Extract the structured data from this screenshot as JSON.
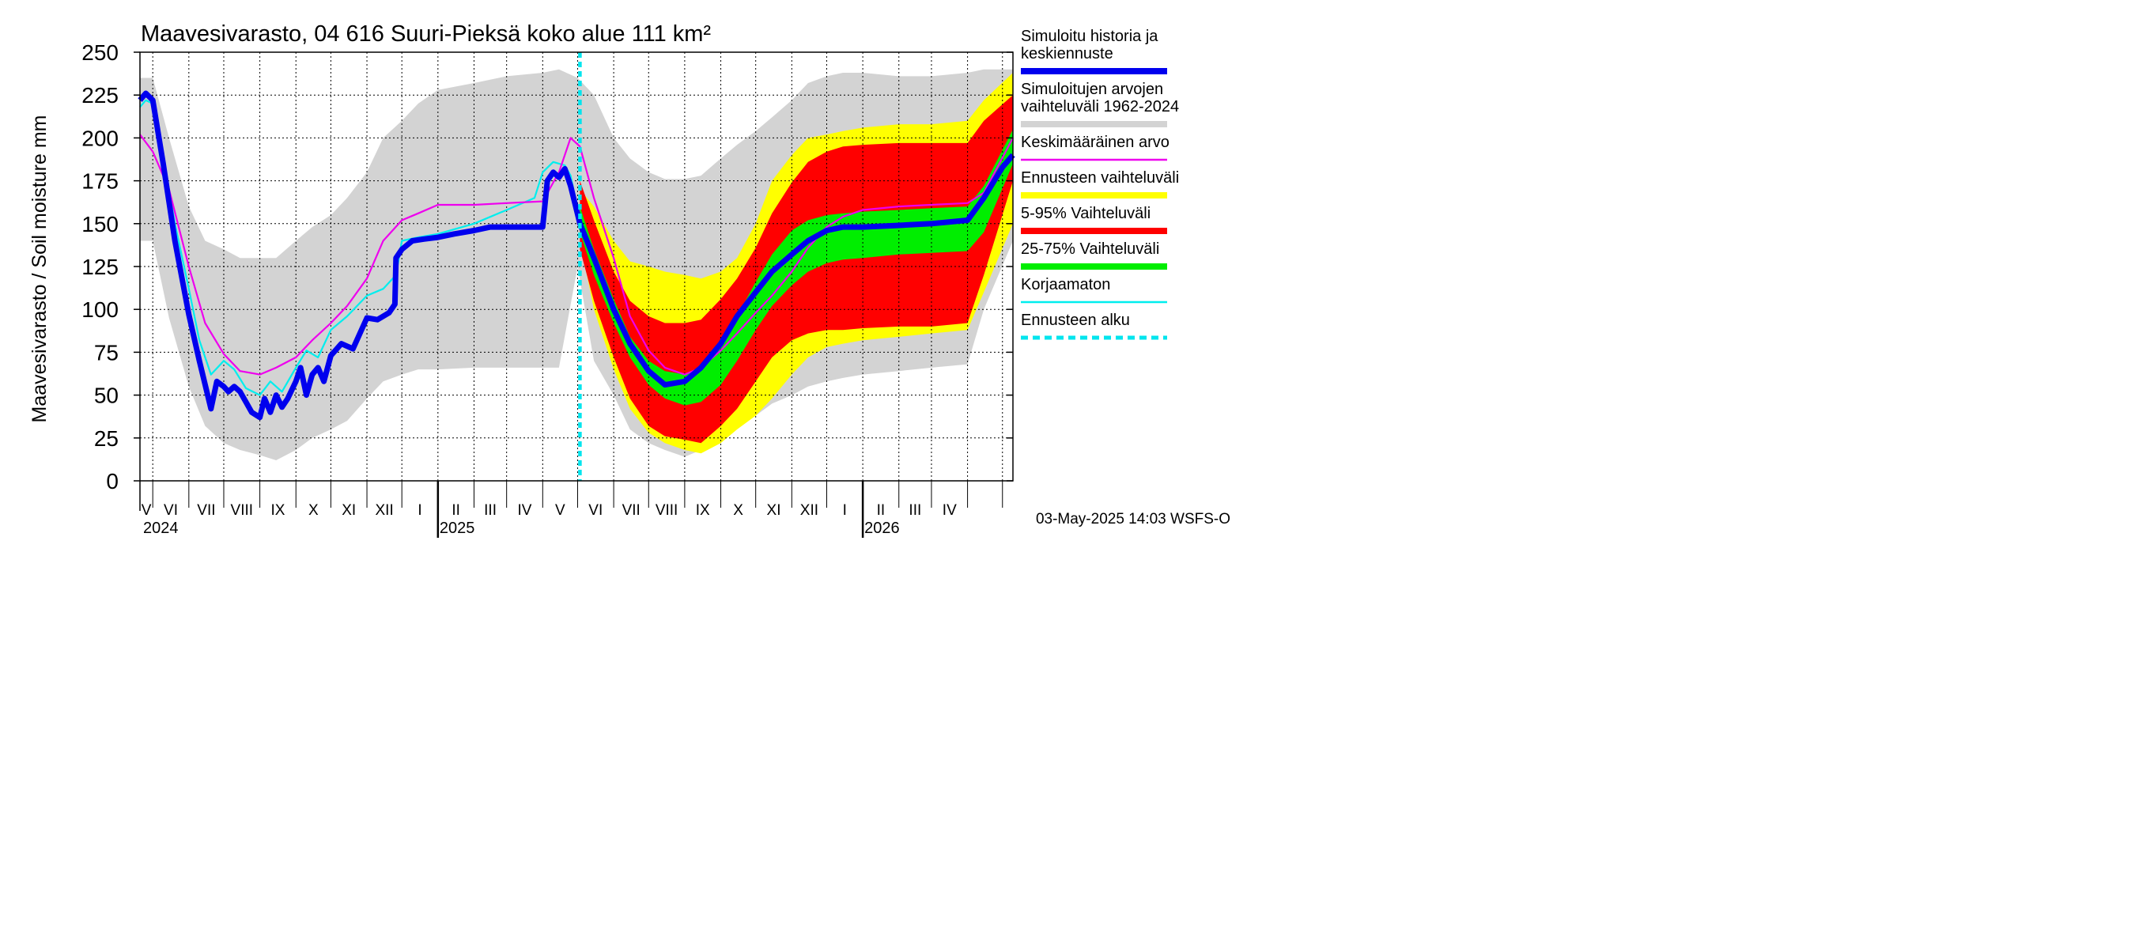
{
  "chart_data": {
    "type": "area",
    "title": "Maavesivarasto, 04 616 Suuri-Pieksä koko alue 111 km²",
    "ylabel": "Maavesivarasto / Soil moisture   mm",
    "ylim": [
      0,
      250
    ],
    "yticks": [
      0,
      25,
      50,
      75,
      100,
      125,
      150,
      175,
      200,
      225,
      250
    ],
    "x_range": [
      "2024-04-20",
      "2026-05-10"
    ],
    "month_labels": [
      "V",
      "VI",
      "VII",
      "VIII",
      "IX",
      "X",
      "XI",
      "XII",
      "I",
      "II",
      "III",
      "IV",
      "V",
      "VI",
      "VII",
      "VIII",
      "IX",
      "X",
      "XI",
      "XII",
      "I",
      "II",
      "III",
      "IV"
    ],
    "year_labels": [
      "2024",
      "2025",
      "2026"
    ],
    "forecast_start": "2025-05-03",
    "grid": true,
    "legend_position": "right",
    "timestamp": "03-May-2025 14:03 WSFS-O",
    "legend": [
      {
        "key": "history",
        "label": [
          "Simuloitu historia ja",
          "keskiennuste"
        ],
        "color": "#0000ee",
        "style": "thick"
      },
      {
        "key": "range",
        "label": [
          "Simuloitujen arvojen",
          "vaihteluväli 1962-2024"
        ],
        "color": "#d3d3d3",
        "style": "thick"
      },
      {
        "key": "mean",
        "label": [
          "Keskimääräinen arvo"
        ],
        "color": "#ee00ee",
        "style": "thin"
      },
      {
        "key": "fc_range",
        "label": [
          "Ennusteen vaihteluväli"
        ],
        "color": "#ffff00",
        "style": "thick"
      },
      {
        "key": "p5_95",
        "label": [
          "5-95% Vaihteluväli"
        ],
        "color": "#ff0000",
        "style": "thick"
      },
      {
        "key": "p25_75",
        "label": [
          "25-75% Vaihteluväli"
        ],
        "color": "#00ee00",
        "style": "thick"
      },
      {
        "key": "uncorrected",
        "label": [
          "Korjaamaton"
        ],
        "color": "#00eeee",
        "style": "thin"
      },
      {
        "key": "fc_start",
        "label": [
          "Ennusteen alku"
        ],
        "color": "#00e5ee",
        "style": "dashed"
      }
    ],
    "series": [
      {
        "name": "Simuloitujen arvojen vaihteluväli 1962-2024",
        "kind": "band",
        "x": [
          "2024-04-20",
          "2024-05-01",
          "2024-05-15",
          "2024-06-01",
          "2024-06-15",
          "2024-07-01",
          "2024-07-15",
          "2024-08-01",
          "2024-08-15",
          "2024-09-01",
          "2024-09-15",
          "2024-10-01",
          "2024-10-15",
          "2024-11-01",
          "2024-11-15",
          "2024-12-01",
          "2024-12-15",
          "2025-01-01",
          "2025-02-01",
          "2025-03-01",
          "2025-04-01",
          "2025-04-15",
          "2025-05-01",
          "2025-05-15",
          "2025-06-01",
          "2025-06-15",
          "2025-07-01",
          "2025-07-15",
          "2025-08-01",
          "2025-08-15",
          "2025-09-01",
          "2025-09-15",
          "2025-10-01",
          "2025-10-15",
          "2025-11-01",
          "2025-11-15",
          "2025-12-01",
          "2025-12-15",
          "2026-01-01",
          "2026-02-01",
          "2026-03-01",
          "2026-04-01",
          "2026-04-15",
          "2026-05-10"
        ],
        "low": [
          140,
          140,
          95,
          55,
          32,
          22,
          18,
          15,
          12,
          18,
          25,
          30,
          35,
          48,
          58,
          62,
          65,
          65,
          66,
          66,
          66,
          66,
          125,
          70,
          50,
          30,
          22,
          18,
          14,
          18,
          25,
          32,
          38,
          45,
          50,
          55,
          58,
          60,
          62,
          64,
          66,
          68,
          100,
          140
        ],
        "high": [
          235,
          235,
          200,
          160,
          140,
          135,
          130,
          130,
          130,
          140,
          148,
          155,
          165,
          180,
          200,
          210,
          220,
          228,
          232,
          236,
          238,
          240,
          235,
          225,
          200,
          188,
          180,
          176,
          176,
          178,
          188,
          196,
          204,
          212,
          222,
          232,
          236,
          238,
          238,
          236,
          236,
          238,
          240,
          240
        ]
      },
      {
        "name": "Ennusteen vaihteluväli",
        "kind": "band",
        "x": [
          "2025-05-03",
          "2025-05-15",
          "2025-06-01",
          "2025-06-15",
          "2025-07-01",
          "2025-07-15",
          "2025-08-01",
          "2025-08-15",
          "2025-09-01",
          "2025-09-15",
          "2025-10-01",
          "2025-10-15",
          "2025-11-01",
          "2025-11-15",
          "2025-12-01",
          "2025-12-15",
          "2026-01-01",
          "2026-02-01",
          "2026-03-01",
          "2026-04-01",
          "2026-04-15",
          "2026-05-10"
        ],
        "low": [
          140,
          100,
          65,
          42,
          28,
          22,
          18,
          16,
          22,
          30,
          38,
          48,
          62,
          72,
          78,
          80,
          82,
          84,
          86,
          88,
          110,
          150
        ],
        "high": [
          170,
          160,
          140,
          128,
          125,
          122,
          120,
          118,
          122,
          130,
          150,
          175,
          190,
          200,
          202,
          204,
          206,
          208,
          208,
          210,
          222,
          238
        ]
      },
      {
        "name": "5-95% Vaihteluväli",
        "kind": "band",
        "x": [
          "2025-05-03",
          "2025-05-15",
          "2025-06-01",
          "2025-06-15",
          "2025-07-01",
          "2025-07-15",
          "2025-08-01",
          "2025-08-15",
          "2025-09-01",
          "2025-09-15",
          "2025-10-01",
          "2025-10-15",
          "2025-11-01",
          "2025-11-15",
          "2025-12-01",
          "2025-12-15",
          "2026-01-01",
          "2026-02-01",
          "2026-03-01",
          "2026-04-01",
          "2026-04-15",
          "2026-05-10"
        ],
        "low": [
          135,
          105,
          72,
          48,
          32,
          26,
          24,
          22,
          32,
          42,
          58,
          72,
          82,
          86,
          88,
          88,
          89,
          90,
          90,
          92,
          120,
          175
        ],
        "high": [
          175,
          152,
          122,
          105,
          96,
          92,
          92,
          94,
          106,
          118,
          136,
          156,
          174,
          186,
          192,
          195,
          196,
          197,
          197,
          197,
          210,
          225
        ]
      },
      {
        "name": "25-75% Vaihteluväli",
        "kind": "band",
        "x": [
          "2025-05-03",
          "2025-05-15",
          "2025-06-01",
          "2025-06-15",
          "2025-07-01",
          "2025-07-15",
          "2025-08-01",
          "2025-08-15",
          "2025-09-01",
          "2025-09-15",
          "2025-10-01",
          "2025-10-15",
          "2025-11-01",
          "2025-11-15",
          "2025-12-01",
          "2025-12-15",
          "2026-01-01",
          "2026-02-01",
          "2026-03-01",
          "2026-04-01",
          "2026-04-15",
          "2026-05-10"
        ],
        "low": [
          145,
          120,
          92,
          72,
          56,
          48,
          44,
          46,
          56,
          70,
          88,
          102,
          114,
          122,
          127,
          129,
          130,
          132,
          133,
          134,
          145,
          185
        ],
        "high": [
          160,
          135,
          106,
          84,
          70,
          64,
          62,
          66,
          78,
          96,
          116,
          132,
          146,
          152,
          155,
          156,
          157,
          158,
          159,
          160,
          172,
          205
        ]
      },
      {
        "name": "Simuloitu historia ja keskiennuste",
        "kind": "line",
        "x": [
          "2024-04-20",
          "2024-04-25",
          "2024-05-01",
          "2024-05-10",
          "2024-05-20",
          "2024-06-01",
          "2024-06-10",
          "2024-06-20",
          "2024-06-25",
          "2024-07-01",
          "2024-07-05",
          "2024-07-10",
          "2024-07-15",
          "2024-07-20",
          "2024-07-25",
          "2024-08-01",
          "2024-08-05",
          "2024-08-10",
          "2024-08-15",
          "2024-08-20",
          "2024-08-25",
          "2024-09-01",
          "2024-09-05",
          "2024-09-10",
          "2024-09-15",
          "2024-09-20",
          "2024-09-25",
          "2024-10-01",
          "2024-10-10",
          "2024-10-20",
          "2024-11-01",
          "2024-11-10",
          "2024-11-20",
          "2024-11-25",
          "2024-11-26",
          "2024-12-01",
          "2024-12-10",
          "2024-12-20",
          "2025-01-01",
          "2025-01-15",
          "2025-02-01",
          "2025-02-15",
          "2025-03-01",
          "2025-03-15",
          "2025-03-25",
          "2025-04-01",
          "2025-04-05",
          "2025-04-10",
          "2025-04-15",
          "2025-04-20",
          "2025-04-25",
          "2025-05-03",
          "2025-05-15",
          "2025-06-01",
          "2025-06-15",
          "2025-07-01",
          "2025-07-15",
          "2025-08-01",
          "2025-08-15",
          "2025-09-01",
          "2025-09-15",
          "2025-10-01",
          "2025-10-15",
          "2025-11-01",
          "2025-11-15",
          "2025-12-01",
          "2025-12-15",
          "2026-01-01",
          "2026-02-01",
          "2026-03-01",
          "2026-04-01",
          "2026-04-15",
          "2026-05-01",
          "2026-05-10"
        ],
        "values": [
          222,
          226,
          222,
          185,
          140,
          97,
          70,
          42,
          58,
          55,
          52,
          55,
          52,
          46,
          40,
          37,
          48,
          40,
          50,
          43,
          48,
          58,
          66,
          50,
          62,
          66,
          58,
          73,
          80,
          77,
          95,
          94,
          98,
          103,
          130,
          135,
          140,
          141,
          142,
          144,
          146,
          148,
          148,
          148,
          148,
          148,
          175,
          180,
          177,
          182,
          172,
          150,
          130,
          100,
          80,
          64,
          56,
          58,
          66,
          80,
          96,
          110,
          122,
          132,
          140,
          146,
          148,
          148,
          149,
          150,
          152,
          165,
          183,
          190
        ]
      },
      {
        "name": "Keskimääräinen arvo",
        "kind": "line",
        "x": [
          "2024-04-20",
          "2024-05-01",
          "2024-05-15",
          "2024-06-01",
          "2024-06-15",
          "2024-07-01",
          "2024-07-15",
          "2024-08-01",
          "2024-08-15",
          "2024-09-01",
          "2024-09-15",
          "2024-10-01",
          "2024-10-15",
          "2024-11-01",
          "2024-11-15",
          "2024-12-01",
          "2024-12-15",
          "2025-01-01",
          "2025-02-01",
          "2025-03-01",
          "2025-04-01",
          "2025-04-15",
          "2025-04-25",
          "2025-05-03",
          "2025-05-15",
          "2025-06-01",
          "2025-06-15",
          "2025-07-01",
          "2025-07-15",
          "2025-08-01",
          "2025-08-15",
          "2025-09-01",
          "2025-09-15",
          "2025-10-01",
          "2025-10-15",
          "2025-11-01",
          "2025-11-15",
          "2025-12-01",
          "2025-12-15",
          "2026-01-01",
          "2026-02-01",
          "2026-03-01",
          "2026-04-01",
          "2026-04-15",
          "2026-05-10"
        ],
        "values": [
          202,
          192,
          170,
          125,
          92,
          74,
          64,
          62,
          66,
          72,
          82,
          92,
          102,
          118,
          140,
          152,
          156,
          161,
          161,
          162,
          163,
          180,
          200,
          195,
          165,
          130,
          96,
          76,
          66,
          62,
          66,
          76,
          86,
          98,
          108,
          122,
          136,
          148,
          154,
          158,
          160,
          161,
          162,
          168,
          200
        ]
      },
      {
        "name": "Korjaamaton",
        "kind": "line",
        "x": [
          "2024-04-20",
          "2024-04-25",
          "2024-05-01",
          "2024-05-10",
          "2024-05-20",
          "2024-06-01",
          "2024-06-10",
          "2024-06-20",
          "2024-07-01",
          "2024-07-10",
          "2024-07-20",
          "2024-08-01",
          "2024-08-10",
          "2024-08-20",
          "2024-09-01",
          "2024-09-10",
          "2024-09-20",
          "2024-10-01",
          "2024-10-15",
          "2024-11-01",
          "2024-11-15",
          "2024-11-26",
          "2024-12-01",
          "2024-12-15",
          "2025-01-01",
          "2025-02-01",
          "2025-03-01",
          "2025-03-25",
          "2025-04-01",
          "2025-04-10",
          "2025-04-20",
          "2025-04-25",
          "2025-05-03"
        ],
        "values": [
          218,
          222,
          220,
          190,
          150,
          112,
          82,
          62,
          70,
          65,
          54,
          50,
          58,
          52,
          66,
          76,
          72,
          88,
          96,
          108,
          112,
          120,
          140,
          142,
          144,
          150,
          158,
          165,
          180,
          186,
          184,
          178,
          152
        ]
      }
    ]
  }
}
